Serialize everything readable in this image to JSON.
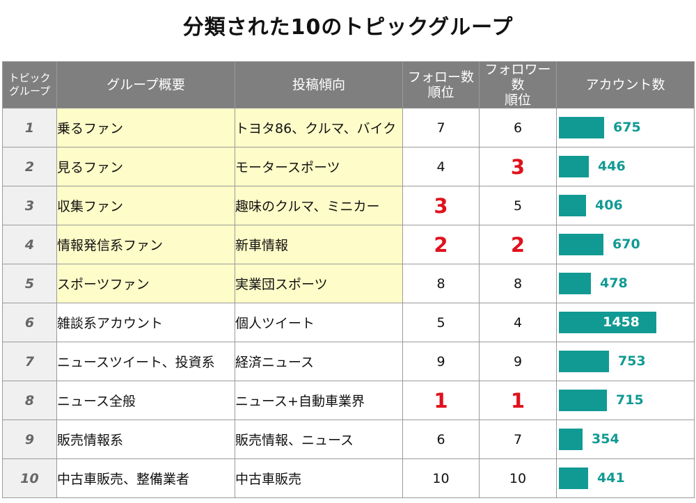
{
  "title": "分類された10のトピックグループ",
  "headers": {
    "group": "トピック\nグループ",
    "summary": "グループ概要",
    "tendency": "投稿傾向",
    "follow": "フォロー数\n順位",
    "follower": "フォロワー数\n順位",
    "accounts": "アカウント数"
  },
  "colors": {
    "header_bg": "#7f7f7f",
    "highlight_bg": "#fefcc8",
    "bar": "#119a93",
    "top_rank": "#e0111c"
  },
  "accounts_max": 1458,
  "rows": [
    {
      "group": "1",
      "summary": "乗るファン",
      "tendency": "トヨタ86、クルマ、バイク",
      "follow_rank": "7",
      "follower_rank": "6",
      "accounts": 675,
      "highlight": true
    },
    {
      "group": "2",
      "summary": "見るファン",
      "tendency": "モータースポーツ",
      "follow_rank": "4",
      "follower_rank": "3",
      "accounts": 446,
      "highlight": true
    },
    {
      "group": "3",
      "summary": "収集ファン",
      "tendency": "趣味のクルマ、ミニカー",
      "follow_rank": "3",
      "follower_rank": "5",
      "accounts": 406,
      "highlight": true
    },
    {
      "group": "4",
      "summary": "情報発信系ファン",
      "tendency": "新車情報",
      "follow_rank": "2",
      "follower_rank": "2",
      "accounts": 670,
      "highlight": true
    },
    {
      "group": "5",
      "summary": "スポーツファン",
      "tendency": "実業団スポーツ",
      "follow_rank": "8",
      "follower_rank": "8",
      "accounts": 478,
      "highlight": true
    },
    {
      "group": "6",
      "summary": "雑談系アカウント",
      "tendency": "個人ツイート",
      "follow_rank": "5",
      "follower_rank": "4",
      "accounts": 1458,
      "highlight": false
    },
    {
      "group": "7",
      "summary": "ニュースツイート、投資系",
      "tendency": "経済ニュース",
      "follow_rank": "9",
      "follower_rank": "9",
      "accounts": 753,
      "highlight": false
    },
    {
      "group": "8",
      "summary": "ニュース全般",
      "tendency": "ニュース+自動車業界",
      "follow_rank": "1",
      "follower_rank": "1",
      "accounts": 715,
      "highlight": false
    },
    {
      "group": "9",
      "summary": "販売情報系",
      "tendency": "販売情報、ニュース",
      "follow_rank": "6",
      "follower_rank": "7",
      "accounts": 354,
      "highlight": false
    },
    {
      "group": "10",
      "summary": "中古車販売、整備業者",
      "tendency": "中古車販売",
      "follow_rank": "10",
      "follower_rank": "10",
      "accounts": 441,
      "highlight": false
    }
  ]
}
